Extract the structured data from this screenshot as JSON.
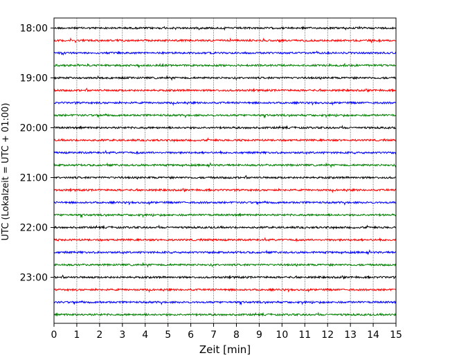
{
  "chart_data": {
    "type": "line",
    "title": "",
    "xlabel": "Zeit  [min]",
    "ylabel": "UTC (Lokalzeit = UTC + 01:00)",
    "xlim": [
      0,
      15
    ],
    "x_ticks": [
      "0",
      "1",
      "2",
      "3",
      "4",
      "5",
      "6",
      "7",
      "8",
      "9",
      "10",
      "11",
      "12",
      "13",
      "14",
      "15"
    ],
    "y_ticks": [
      "18:00",
      "19:00",
      "20:00",
      "21:00",
      "22:00",
      "23:00"
    ],
    "vertical_grid": true,
    "trace_start": "18:00",
    "trace_end": "23:45",
    "trace_interval_minutes": 15,
    "trace_colors": [
      "#000000",
      "#ff0000",
      "#0000ff",
      "#008000"
    ],
    "signal": "seismogram helicorder — low-amplitude noise on every trace"
  }
}
